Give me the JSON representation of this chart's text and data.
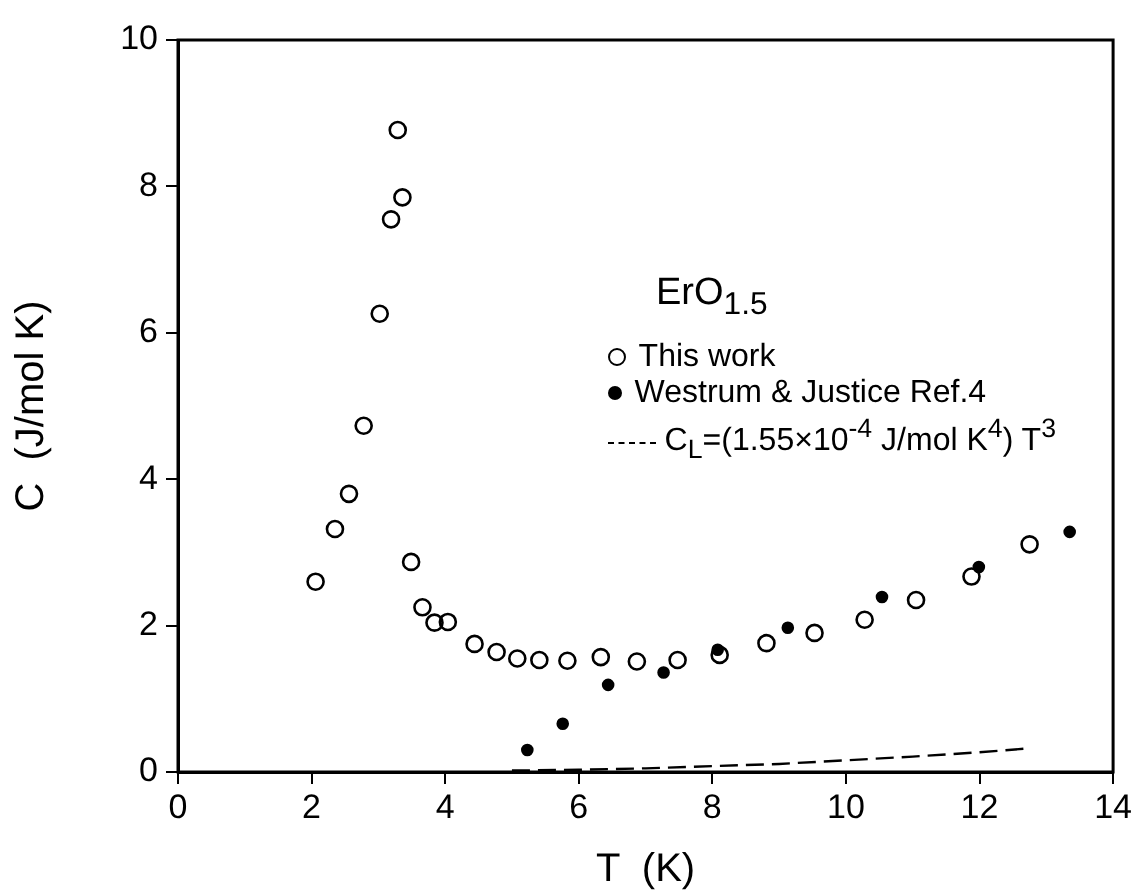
{
  "chart_data": {
    "type": "scatter",
    "xlabel": "T  (K)",
    "ylabel": "C  (J/mol K)",
    "annotations": [
      "ErO$_{1.5}$"
    ],
    "xlim": [
      0,
      14
    ],
    "xticks": [
      0,
      2,
      4,
      6,
      8,
      10,
      12,
      14
    ],
    "ylim": [
      0,
      10
    ],
    "yticks": [
      0,
      2,
      4,
      6,
      8,
      10
    ],
    "grid": false,
    "legend": "right",
    "series": [
      {
        "name": "This work",
        "color": "#000000",
        "marker": "circle",
        "x": [
          2.06,
          2.35,
          2.56,
          2.78,
          3.02,
          3.19,
          3.29,
          3.36,
          3.49,
          3.66,
          3.84,
          4.04,
          4.44,
          4.77,
          5.08,
          5.41,
          5.83,
          6.33,
          6.87,
          7.48,
          8.11,
          8.81,
          9.53,
          10.28,
          11.05,
          11.88,
          12.75
        ],
        "values": [
          2.6,
          3.32,
          3.8,
          4.73,
          6.26,
          7.55,
          8.77,
          7.85,
          2.87,
          2.25,
          2.04,
          2.05,
          1.75,
          1.64,
          1.55,
          1.53,
          1.52,
          1.57,
          1.51,
          1.53,
          1.6,
          1.76,
          1.9,
          2.08,
          2.35,
          2.67,
          3.11
        ]
      },
      {
        "name": "Westrum & Justice  Ref.4",
        "color": "#000000",
        "marker": "circle",
        "x": [
          5.23,
          5.76,
          6.44,
          7.27,
          8.08,
          9.13,
          10.54,
          11.99,
          13.35
        ],
        "values": [
          0.3,
          0.66,
          1.19,
          1.36,
          1.67,
          1.97,
          2.39,
          2.8,
          3.28
        ]
      },
      {
        "name": "C$_{L}$=(1.55×10$^{-4}$ J/mol K$^{4}$) T$^{3}$",
        "type": "line",
        "line_style": "dashed",
        "marker": "none",
        "color": "#000000",
        "x": [
          5,
          6,
          7,
          8,
          9,
          10,
          11,
          12,
          12.7
        ],
        "values": [
          0.02,
          0.03,
          0.05,
          0.08,
          0.11,
          0.16,
          0.21,
          0.27,
          0.32
        ]
      }
    ]
  }
}
